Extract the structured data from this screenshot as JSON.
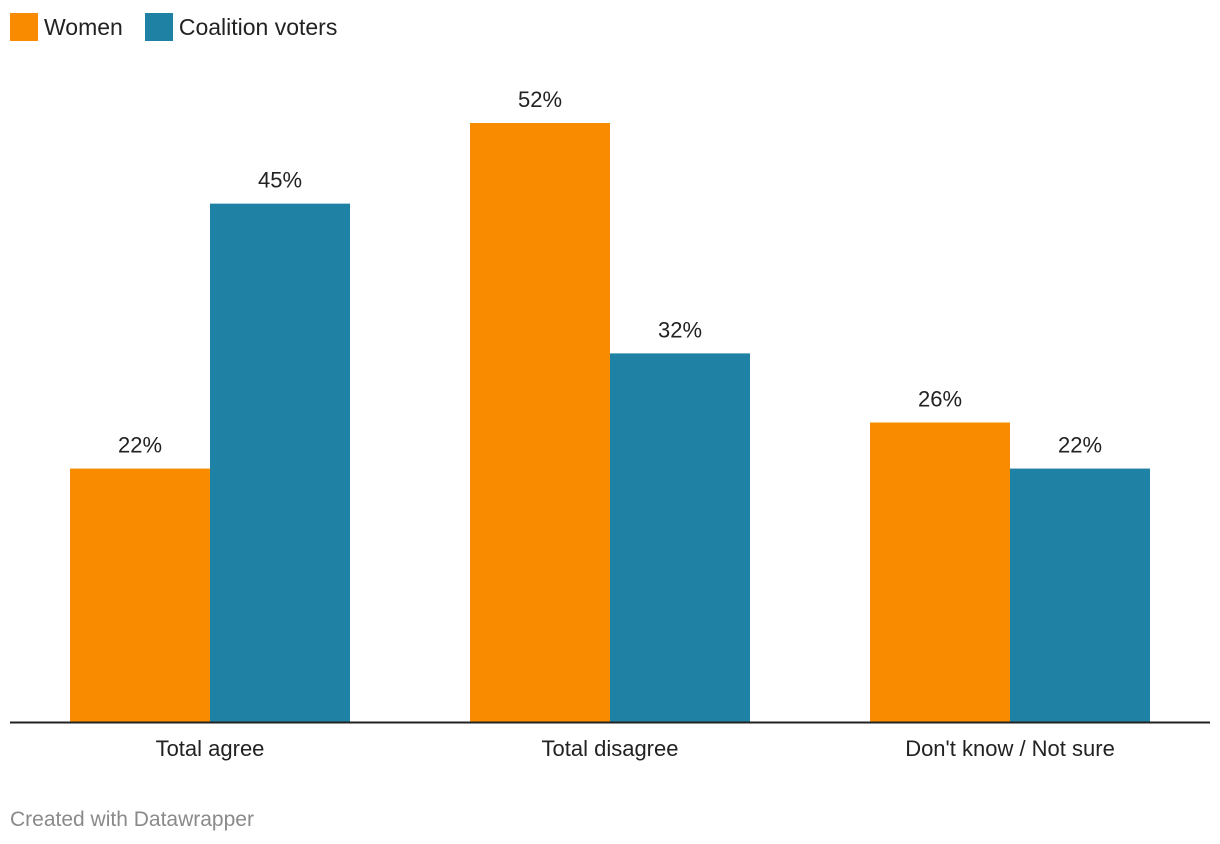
{
  "legend": [
    {
      "label": "Women",
      "color": "#f98b00"
    },
    {
      "label": "Coalition voters",
      "color": "#1f81a3"
    }
  ],
  "chart_data": {
    "type": "bar",
    "title": "",
    "xlabel": "",
    "ylabel": "",
    "categories": [
      "Total agree",
      "Total disagree",
      "Don't know / Not sure"
    ],
    "series": [
      {
        "name": "Women",
        "color": "#f98b00",
        "values": [
          22,
          52,
          26
        ],
        "labels": [
          "22%",
          "52%",
          "26%"
        ]
      },
      {
        "name": "Coalition voters",
        "color": "#1f81a3",
        "values": [
          45,
          32,
          22
        ],
        "labels": [
          "45%",
          "32%",
          "22%"
        ]
      }
    ],
    "ylim": [
      0,
      52
    ],
    "grid": false,
    "legend_position": "top-left"
  },
  "footer": "Created with Datawrapper"
}
